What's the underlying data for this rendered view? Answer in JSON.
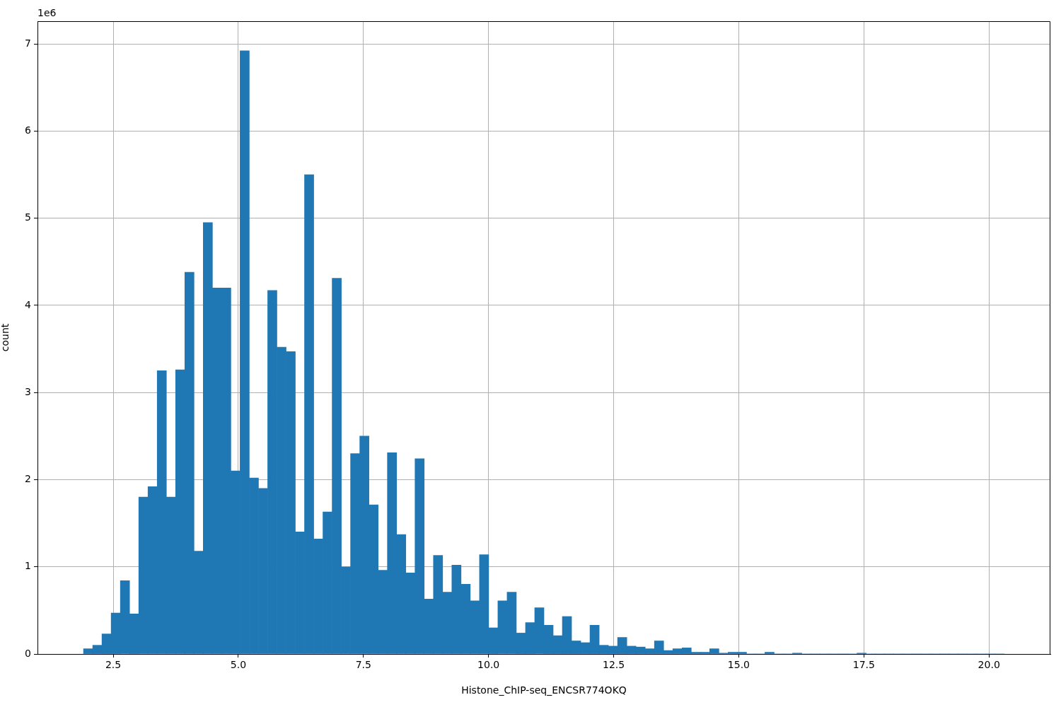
{
  "chart_data": {
    "type": "histogram",
    "xlabel": "Histone_ChIP-seq_ENCSR774OKQ",
    "ylabel": "count",
    "color": "#1f77b4",
    "bins": [
      1.907,
      2.091,
      2.275,
      2.459,
      2.643,
      2.827,
      3.011,
      3.195,
      3.379,
      3.563,
      3.747,
      3.931,
      4.115,
      4.299,
      4.483,
      4.667,
      4.851,
      5.035,
      5.219,
      5.403,
      5.587,
      5.771,
      5.955,
      6.139,
      6.323,
      6.507,
      6.691,
      6.875,
      7.059,
      7.243,
      7.427,
      7.611,
      7.795,
      7.979,
      8.163,
      8.347,
      8.531,
      8.715,
      8.899,
      9.083,
      9.267,
      9.451,
      9.635,
      9.819,
      10.003,
      10.187,
      10.371,
      10.555,
      10.739,
      10.923,
      11.107,
      11.291,
      11.475,
      11.659,
      11.843,
      12.027,
      12.211,
      12.395,
      12.579,
      12.763,
      12.947,
      13.131,
      13.315,
      13.499,
      13.683,
      13.867,
      14.051,
      14.235,
      14.419,
      14.603,
      14.787,
      14.971,
      15.155,
      15.339,
      15.523,
      15.707,
      15.891,
      16.075,
      16.259,
      16.443,
      16.627,
      16.811,
      16.995,
      17.179,
      17.363,
      17.547,
      17.731,
      17.915,
      18.099,
      18.283,
      18.467,
      18.651,
      18.835,
      19.019,
      19.203,
      19.387,
      19.571,
      19.755,
      19.939,
      20.123,
      20.307
    ],
    "values": [
      0.06,
      0.1,
      0.23,
      0.47,
      0.84,
      0.46,
      1.8,
      1.92,
      3.25,
      1.8,
      3.26,
      4.38,
      1.18,
      4.95,
      4.2,
      4.2,
      2.1,
      6.92,
      2.02,
      1.9,
      4.17,
      3.52,
      3.47,
      1.4,
      5.5,
      1.32,
      1.63,
      4.31,
      1.0,
      2.3,
      2.5,
      1.71,
      0.96,
      2.31,
      1.37,
      0.93,
      2.24,
      0.63,
      1.13,
      0.71,
      1.02,
      0.8,
      0.61,
      1.14,
      0.3,
      0.61,
      0.71,
      0.24,
      0.36,
      0.53,
      0.33,
      0.21,
      0.43,
      0.15,
      0.13,
      0.33,
      0.1,
      0.09,
      0.19,
      0.09,
      0.08,
      0.06,
      0.15,
      0.04,
      0.06,
      0.07,
      0.02,
      0.02,
      0.06,
      0.01,
      0.02,
      0.02,
      0,
      0,
      0.02,
      0,
      0,
      0.01,
      0,
      0,
      0,
      0,
      0,
      0,
      0.01,
      0,
      0,
      0,
      0,
      0,
      0,
      0,
      0,
      0,
      0,
      0,
      0,
      0,
      0,
      0
    ],
    "xlim": [
      0.987,
      21.227
    ],
    "xticks": [
      2.5,
      {
        "value": 5,
        "label": "5.0"
      },
      7.5,
      {
        "value": 10,
        "label": "10.0"
      },
      12.5,
      {
        "value": 15,
        "label": "15.0"
      },
      17.5,
      {
        "value": 20,
        "label": "20.0"
      }
    ],
    "ylim": [
      0,
      7.26
    ],
    "yticks": [
      0,
      1,
      2,
      3,
      4,
      5,
      6,
      7
    ],
    "grid": true,
    "annotations": [
      "1e6"
    ]
  }
}
